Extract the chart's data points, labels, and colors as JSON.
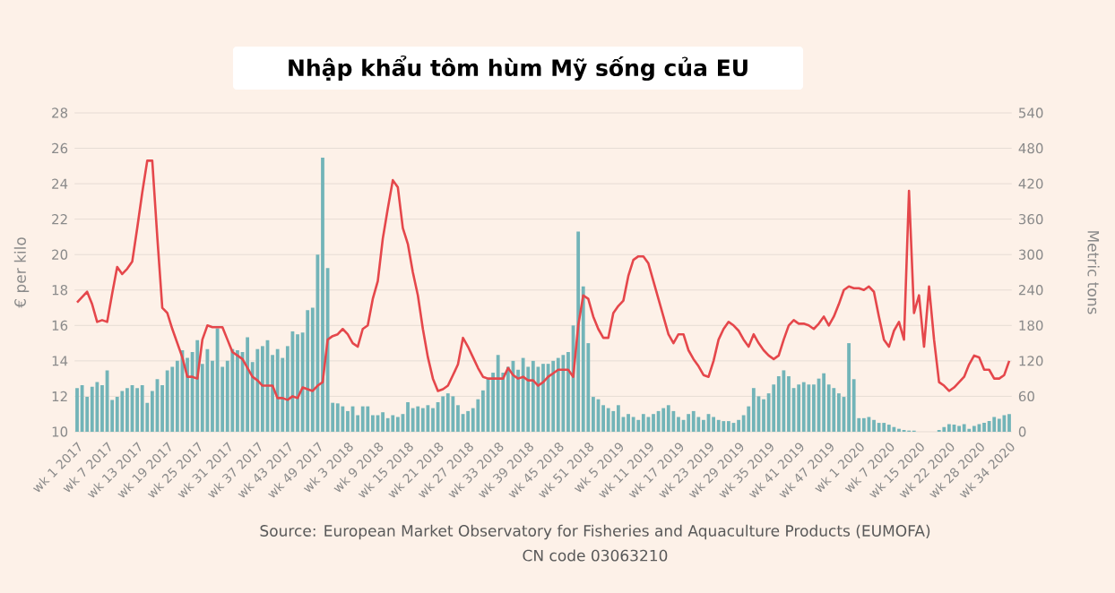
{
  "chart_data": {
    "type": "bar",
    "title": "Nhập khẩu tôm hùm Mỹ sống của EU",
    "ylabel": "€ per kilo",
    "y2label": "Metric tons",
    "annotations": [
      "Source: European Market Observatory for Fisheries and Aquaculture Products (EUMOFA)",
      "CN code 03063210"
    ],
    "categories": [
      "wk 1 2017",
      null,
      null,
      null,
      null,
      null,
      "wk 7 2017",
      null,
      null,
      null,
      null,
      null,
      "wk 13 2017",
      null,
      null,
      null,
      null,
      null,
      "wk 19 2017",
      null,
      null,
      null,
      null,
      null,
      "wk 25 2017",
      null,
      null,
      null,
      null,
      null,
      "wk 31 2017",
      null,
      null,
      null,
      null,
      null,
      "wk 37 2017",
      null,
      null,
      null,
      null,
      null,
      "wk 43 2017",
      null,
      null,
      null,
      null,
      null,
      "wk 49 2017",
      null,
      null,
      null,
      null,
      null,
      "wk 3 2018",
      null,
      null,
      null,
      null,
      null,
      "wk 9 2018",
      null,
      null,
      null,
      null,
      null,
      "wk 15 2018",
      null,
      null,
      null,
      null,
      null,
      "wk 21 2018",
      null,
      null,
      null,
      null,
      null,
      "wk 27 2018",
      null,
      null,
      null,
      null,
      null,
      "wk 33 2018",
      null,
      null,
      null,
      null,
      null,
      "wk 39 2018",
      null,
      null,
      null,
      null,
      null,
      "wk 45 2018",
      null,
      null,
      null,
      null,
      null,
      "wk 51 2018",
      null,
      null,
      null,
      null,
      null,
      "wk 5 2019",
      null,
      null,
      null,
      null,
      null,
      "wk 11 2019",
      null,
      null,
      null,
      null,
      null,
      "wk 17 2019",
      null,
      null,
      null,
      null,
      null,
      "wk 23 2019",
      null,
      null,
      null,
      null,
      null,
      "wk 29 2019",
      null,
      null,
      null,
      null,
      null,
      "wk 35 2019",
      null,
      null,
      null,
      null,
      null,
      "wk 41 2019",
      null,
      null,
      null,
      null,
      null,
      "wk 47 2019",
      null,
      null,
      null,
      null,
      null,
      "wk 1 2020",
      null,
      null,
      null,
      null,
      null,
      "wk 7 2020",
      null,
      null,
      null,
      null,
      null,
      "wk 15 2020",
      null,
      null,
      null,
      null,
      null,
      "wk 22 2020",
      null,
      null,
      null,
      null,
      null,
      "wk 28 2020",
      null,
      null,
      null,
      null,
      null,
      "wk 34 2020"
    ],
    "series": [
      {
        "axis": "y2",
        "color": "#72b4b8",
        "values": [
          74,
          79,
          59,
          76,
          84,
          79,
          104,
          54,
          59,
          69,
          74,
          79,
          74,
          79,
          49,
          69,
          89,
          79,
          104,
          110,
          120,
          138,
          125,
          135,
          155,
          115,
          140,
          120,
          175,
          110,
          120,
          140,
          138,
          135,
          160,
          118,
          140,
          145,
          155,
          130,
          140,
          125,
          145,
          170,
          165,
          168,
          206,
          210,
          300,
          464,
          277,
          49,
          48,
          43,
          35,
          43,
          28,
          43,
          43,
          28,
          28,
          33,
          23,
          28,
          25,
          30,
          50,
          40,
          43,
          40,
          45,
          40,
          50,
          60,
          65,
          60,
          45,
          30,
          35,
          40,
          55,
          70,
          90,
          100,
          130,
          100,
          110,
          120,
          105,
          125,
          110,
          120,
          110,
          115,
          115,
          120,
          125,
          130,
          135,
          180,
          339,
          246,
          150,
          59,
          55,
          45,
          40,
          35,
          45,
          25,
          30,
          25,
          20,
          30,
          25,
          30,
          35,
          40,
          45,
          35,
          25,
          20,
          30,
          35,
          25,
          20,
          30,
          25,
          20,
          18,
          18,
          15,
          20,
          28,
          43,
          74,
          60,
          55,
          65,
          80,
          94,
          104,
          94,
          74,
          80,
          84,
          80,
          80,
          90,
          99,
          80,
          74,
          65,
          59,
          150,
          89,
          23,
          23,
          25,
          20,
          15,
          15,
          12,
          8,
          5,
          3,
          2,
          2,
          null,
          null,
          null,
          null,
          3,
          8,
          13,
          12,
          10,
          13,
          5,
          10,
          13,
          15,
          18,
          25,
          22,
          28,
          30
        ]
      },
      {
        "type": "line",
        "axis": "y",
        "color": "#e5474b",
        "values": [
          17.3,
          17.6,
          17.9,
          17.2,
          16.2,
          16.3,
          16.2,
          17.8,
          19.3,
          18.9,
          19.2,
          19.6,
          21.5,
          23.5,
          25.3,
          25.3,
          21,
          17.0,
          16.7,
          15.8,
          15,
          14.2,
          13.1,
          13.1,
          13,
          15.2,
          16,
          15.9,
          15.9,
          15.9,
          15.2,
          14.5,
          14.3,
          14.1,
          13.6,
          13.1,
          12.9,
          12.6,
          12.6,
          12.6,
          11.9,
          11.9,
          11.8,
          12,
          11.9,
          12.5,
          12.4,
          12.3,
          12.6,
          12.8,
          15.2,
          15.4,
          15.5,
          15.8,
          15.5,
          15,
          14.8,
          15.8,
          16,
          17.5,
          18.5,
          20.9,
          22.6,
          24.2,
          23.8,
          21.5,
          20.6,
          19,
          17.7,
          15.8,
          14.2,
          13,
          12.3,
          12.4,
          12.6,
          13.2,
          13.8,
          15.3,
          14.8,
          14.2,
          13.6,
          13.1,
          13,
          13,
          13,
          13,
          13.6,
          13.2,
          13,
          13.1,
          12.9,
          12.9,
          12.6,
          12.8,
          13.1,
          13.3,
          13.5,
          13.5,
          13.5,
          13.1,
          16,
          17.7,
          17.5,
          16.5,
          15.8,
          15.3,
          15.3,
          16.7,
          17.1,
          17.4,
          18.8,
          19.7,
          19.9,
          19.9,
          19.5,
          18.5,
          17.5,
          16.5,
          15.5,
          15,
          15.5,
          15.5,
          14.6,
          14.1,
          13.7,
          13.2,
          13.1,
          14,
          15.2,
          15.8,
          16.2,
          16,
          15.7,
          15.2,
          14.8,
          15.5,
          15,
          14.6,
          14.3,
          14.1,
          14.3,
          15.2,
          16,
          16.3,
          16.1,
          16.1,
          16,
          15.8,
          16.1,
          16.5,
          16,
          16.5,
          17.2,
          18,
          18.2,
          18.1,
          18.1,
          18,
          18.2,
          17.9,
          16.5,
          15.2,
          14.8,
          15.7,
          16.2,
          15.2,
          23.6,
          16.7,
          17.7,
          14.8,
          18.2,
          15.2,
          12.8,
          12.6,
          12.3,
          12.5,
          12.8,
          13.1,
          13.8,
          14.3,
          14.2,
          13.5,
          13.5,
          13,
          13,
          13.2,
          14
        ]
      }
    ],
    "ylim": [
      10,
      28
    ],
    "yticks": [
      10,
      12,
      14,
      16,
      18,
      20,
      22,
      24,
      26,
      28
    ],
    "y2lim": [
      0,
      540
    ],
    "y2ticks": [
      0,
      60,
      120,
      180,
      240,
      300,
      360,
      420,
      480,
      540
    ],
    "grid": "y"
  }
}
